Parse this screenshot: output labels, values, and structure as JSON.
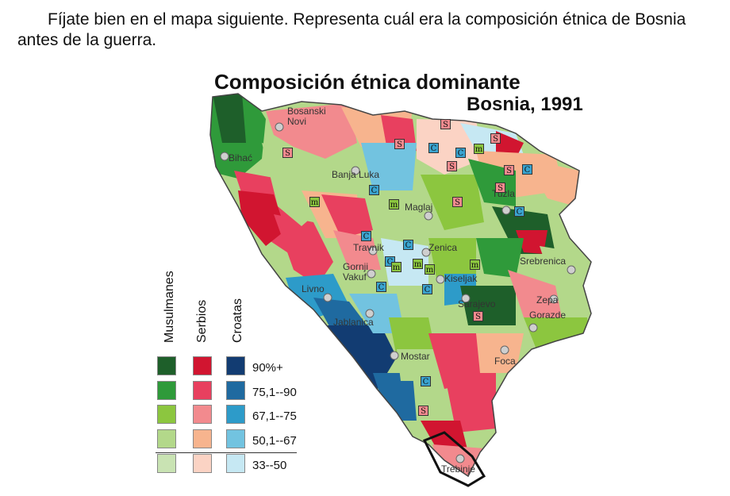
{
  "instruction": "Fíjate bien en el mapa siguiente. Representa cuál era la composición étnica de Bosnia antes de la guerra.",
  "map": {
    "title": "Composición étnica dominante",
    "subtitle": "Bosnia, 1991",
    "cities": [
      "Bosanski Novi",
      "Bihać",
      "Banja Luka",
      "Maglaj",
      "Tuzla",
      "Travnik",
      "Zenica",
      "Gornji Vakuf",
      "Srebrenica",
      "Kiseljak",
      "Livno",
      "Sarajevo",
      "Zepa",
      "Gorazde",
      "Jablanica",
      "Mostar",
      "Foca",
      "Trebinje"
    ],
    "markers": {
      "serb": "S",
      "croat": "C",
      "muslim": "m"
    },
    "legend": {
      "groups": [
        "Musulmanes",
        "Serbios",
        "Croatas"
      ],
      "ranges": [
        "90%+",
        "75,1--90",
        "67,1--75",
        "50,1--67",
        "33--50"
      ],
      "colors": {
        "muslim": [
          "#1e5f2a",
          "#2f9a3a",
          "#8cc63f",
          "#b3d88a",
          "#c9e3b3"
        ],
        "serb": [
          "#d11530",
          "#e8405f",
          "#f28a8e",
          "#f7b48e",
          "#fbd3c4"
        ],
        "croat": [
          "#123c72",
          "#1f6aa0",
          "#2d9bc9",
          "#72c3e0",
          "#c6e8f3"
        ]
      }
    }
  }
}
